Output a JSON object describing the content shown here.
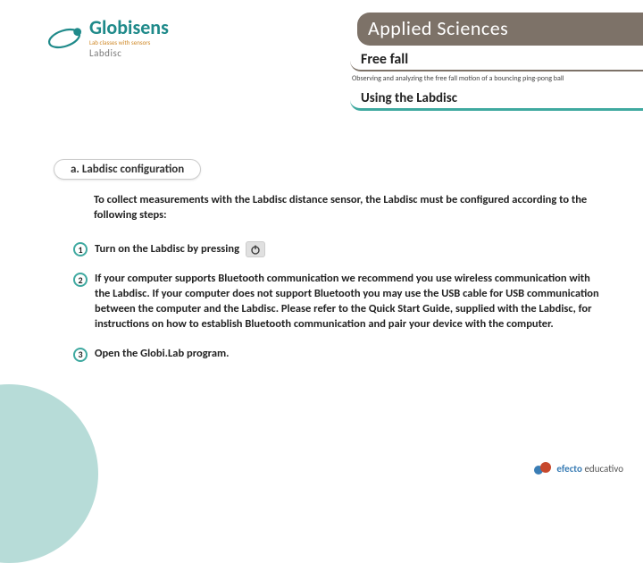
{
  "logo": {
    "name": "Globisens",
    "tagline": "Lab classes with sensors",
    "sub": "Labdisc"
  },
  "header": {
    "category": "Applied Sciences",
    "title": "Free fall",
    "subtitle": "Observing and analyzing the free fall motion of a bouncing ping-pong ball",
    "section": "Using the Labdisc"
  },
  "subsection": "a. Labdisc configuration",
  "intro": "To collect measurements with the Labdisc distance sensor, the Labdisc must be configured according to the following steps:",
  "steps": [
    {
      "num": "1",
      "text": "Turn on the Labdisc by pressing",
      "has_power_icon": true
    },
    {
      "num": "2",
      "text": "If your computer supports Bluetooth communication we recommend you use wireless communication with the Labdisc. If your computer does not support Bluetooth you may use the USB cable for USB communication between the computer and the Labdisc. Please refer to the Quick Start Guide, supplied with the Labdisc, for instructions on how to establish Bluetooth communication and pair your device with the computer."
    },
    {
      "num": "3",
      "text": "Open the Globi.Lab program."
    }
  ],
  "footer": {
    "brand": "efecto educativo"
  },
  "colors": {
    "teal": "#3fa9a0",
    "teal_light": "#b7dcd8",
    "brown": "#7d7268",
    "orange": "#d08a2a",
    "logo_teal": "#1f8a8a",
    "footer_blue": "#3a7db5"
  }
}
